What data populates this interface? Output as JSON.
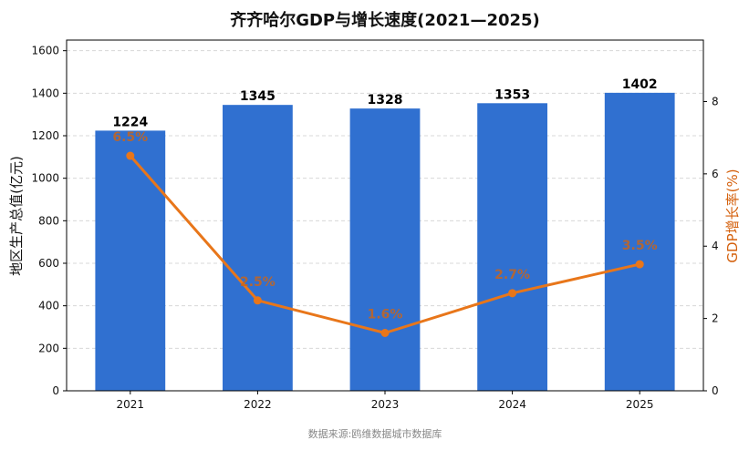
{
  "chart_data": {
    "type": "bar",
    "title": "齐齐哈尔GDP与增长速度(2021—2025)",
    "categories": [
      "2021",
      "2022",
      "2023",
      "2024",
      "2025"
    ],
    "series": [
      {
        "type": "bar",
        "axis": "left",
        "values": [
          1224,
          1345,
          1328,
          1353,
          1402
        ],
        "value_labels": [
          "1224",
          "1345",
          "1328",
          "1353",
          "1402"
        ],
        "color": "#3070d0"
      },
      {
        "type": "line",
        "axis": "right",
        "values": [
          6.5,
          2.5,
          1.6,
          2.7,
          3.5
        ],
        "value_labels": [
          "6.5%",
          "2.5%",
          "1.6%",
          "2.7%",
          "3.5%"
        ],
        "color": "#e8761a"
      }
    ],
    "ylabel_left": "地区生产总值(亿元)",
    "ylabel_right": "GDP增长率(%)",
    "ylim_left": [
      0,
      1650
    ],
    "ylim_right": [
      0,
      9.7
    ],
    "yticks_left": [
      "0",
      "200",
      "400",
      "600",
      "800",
      "1000",
      "1200",
      "1400",
      "1600"
    ],
    "yticks_right": [
      "0",
      "2",
      "4",
      "6",
      "8"
    ],
    "grid": "horizontal-dashed",
    "legend": "none"
  },
  "source_note": "数据来源:鸥维数据城市数据库"
}
